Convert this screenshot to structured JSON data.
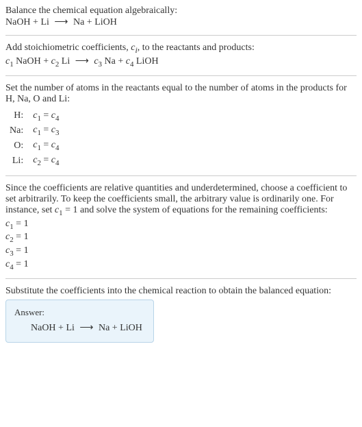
{
  "intro": {
    "line1": "Balance the chemical equation algebraically:",
    "reactants": "NaOH + Li",
    "arrow": "⟶",
    "products": "Na + LiOH"
  },
  "step1": {
    "text": "Add stoichiometric coefficients, ",
    "cvar": "c",
    "csub": "i",
    "text2": ", to the reactants and products:",
    "eq_c1": "c",
    "eq_c1sub": "1",
    "eq_r1": " NaOH + ",
    "eq_c2": "c",
    "eq_c2sub": "2",
    "eq_r2": " Li",
    "arrow": "⟶",
    "eq_c3": "c",
    "eq_c3sub": "3",
    "eq_p1": " Na + ",
    "eq_c4": "c",
    "eq_c4sub": "4",
    "eq_p2": " LiOH"
  },
  "step2": {
    "text": "Set the number of atoms in the reactants equal to the number of atoms in the products for H, Na, O and Li:",
    "rows": [
      {
        "label": "H:",
        "lhs_c": "c",
        "lhs_sub": "1",
        "eq": " = ",
        "rhs_c": "c",
        "rhs_sub": "4"
      },
      {
        "label": "Na:",
        "lhs_c": "c",
        "lhs_sub": "1",
        "eq": " = ",
        "rhs_c": "c",
        "rhs_sub": "3"
      },
      {
        "label": "O:",
        "lhs_c": "c",
        "lhs_sub": "1",
        "eq": " = ",
        "rhs_c": "c",
        "rhs_sub": "4"
      },
      {
        "label": "Li:",
        "lhs_c": "c",
        "lhs_sub": "2",
        "eq": " = ",
        "rhs_c": "c",
        "rhs_sub": "4"
      }
    ]
  },
  "step3": {
    "text1": "Since the coefficients are relative quantities and underdetermined, choose a coefficient to set arbitrarily. To keep the coefficients small, the arbitrary value is ordinarily one. For instance, set ",
    "cvar": "c",
    "csub": "1",
    "text2": " = 1 and solve the system of equations for the remaining coefficients:",
    "coeffs": [
      {
        "c": "c",
        "sub": "1",
        "val": " = 1"
      },
      {
        "c": "c",
        "sub": "2",
        "val": " = 1"
      },
      {
        "c": "c",
        "sub": "3",
        "val": " = 1"
      },
      {
        "c": "c",
        "sub": "4",
        "val": " = 1"
      }
    ]
  },
  "step4": {
    "text": "Substitute the coefficients into the chemical reaction to obtain the balanced equation:"
  },
  "answer": {
    "label": "Answer:",
    "reactants": "NaOH + Li",
    "arrow": "⟶",
    "products": "Na + LiOH"
  }
}
